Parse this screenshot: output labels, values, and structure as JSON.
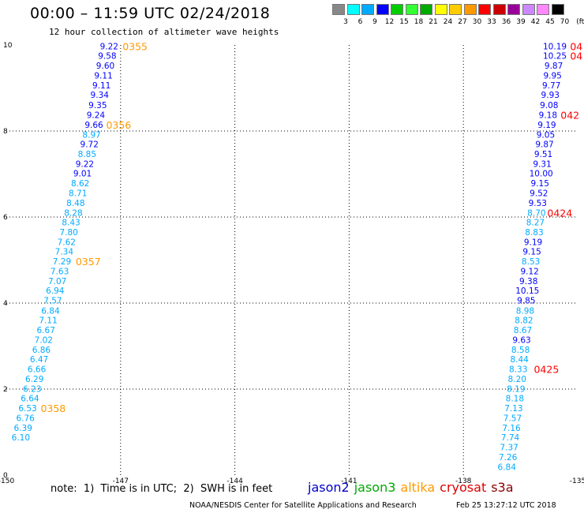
{
  "header": {
    "title": "00:00 – 11:59 UTC 02/24/2018",
    "subtitle": "12 hour collection of altimeter wave heights"
  },
  "colorbar": {
    "colors": [
      "#888888",
      "#00ffff",
      "#00aaff",
      "#0000ff",
      "#00cc00",
      "#33ff33",
      "#00aa00",
      "#ffff00",
      "#ffcc00",
      "#ff9900",
      "#ff0000",
      "#cc0000",
      "#990099",
      "#cc88ff",
      "#ff88ff",
      "#000000"
    ],
    "labels": [
      "3",
      "6",
      "9",
      "12",
      "15",
      "18",
      "21",
      "24",
      "27",
      "30",
      "33",
      "36",
      "39",
      "42",
      "45",
      "70",
      "(ft)"
    ]
  },
  "chart_data": {
    "type": "scatter",
    "title": "12 hour collection of altimeter wave heights",
    "xlim": [
      -150,
      -135
    ],
    "ylim": [
      0,
      10
    ],
    "x_ticks": [
      "-150",
      "-147",
      "-144",
      "-141",
      "-138",
      "-135"
    ],
    "x_tick_values": [
      -150,
      -147,
      -144,
      -141,
      -138,
      -135
    ],
    "y_ticks": [
      "0",
      "2",
      "4",
      "6",
      "8",
      "10"
    ],
    "y_tick_values": [
      0,
      2,
      4,
      6,
      8,
      10
    ],
    "grid": true,
    "colors": {
      "c9": "#00aaff",
      "c12": "#0000ff",
      "time_altika": "#ff9900",
      "time_cryosat": "#ff0000"
    },
    "tracks": [
      {
        "name": "track-west",
        "points": [
          {
            "x": -147.3,
            "y": 9.97,
            "v": "9.22",
            "c": "c12"
          },
          {
            "x": -147.35,
            "y": 9.75,
            "v": "9.58",
            "c": "c12"
          },
          {
            "x": -147.4,
            "y": 9.52,
            "v": "9.60",
            "c": "c12"
          },
          {
            "x": -147.45,
            "y": 9.29,
            "v": "9.11",
            "c": "c12"
          },
          {
            "x": -147.5,
            "y": 9.06,
            "v": "9.11",
            "c": "c12"
          },
          {
            "x": -147.55,
            "y": 8.84,
            "v": "9.34",
            "c": "c12"
          },
          {
            "x": -147.6,
            "y": 8.61,
            "v": "9.35",
            "c": "c12"
          },
          {
            "x": -147.65,
            "y": 8.38,
            "v": "9.24",
            "c": "c12"
          },
          {
            "x": -147.7,
            "y": 8.15,
            "v": "9.66",
            "c": "c12"
          },
          {
            "x": -147.76,
            "y": 7.92,
            "v": "8.97",
            "c": "c9"
          },
          {
            "x": -147.82,
            "y": 7.7,
            "v": "9.72",
            "c": "c12"
          },
          {
            "x": -147.88,
            "y": 7.47,
            "v": "8.85",
            "c": "c9"
          },
          {
            "x": -147.94,
            "y": 7.24,
            "v": "9.22",
            "c": "c12"
          },
          {
            "x": -148.0,
            "y": 7.02,
            "v": "9.01",
            "c": "c12"
          },
          {
            "x": -148.06,
            "y": 6.79,
            "v": "8.62",
            "c": "c9"
          },
          {
            "x": -148.12,
            "y": 6.56,
            "v": "8.71",
            "c": "c9"
          },
          {
            "x": -148.18,
            "y": 6.33,
            "v": "8.48",
            "c": "c9"
          },
          {
            "x": -148.24,
            "y": 6.1,
            "v": "8.28",
            "c": "c9"
          },
          {
            "x": -148.3,
            "y": 5.88,
            "v": "8.43",
            "c": "c9"
          },
          {
            "x": -148.36,
            "y": 5.65,
            "v": "7.80",
            "c": "c9"
          },
          {
            "x": -148.42,
            "y": 5.42,
            "v": "7.62",
            "c": "c9"
          },
          {
            "x": -148.48,
            "y": 5.2,
            "v": "7.34",
            "c": "c9"
          },
          {
            "x": -148.54,
            "y": 4.97,
            "v": "7.29",
            "c": "c9"
          },
          {
            "x": -148.6,
            "y": 4.74,
            "v": "7.63",
            "c": "c9"
          },
          {
            "x": -148.66,
            "y": 4.51,
            "v": "7.07",
            "c": "c9"
          },
          {
            "x": -148.72,
            "y": 4.29,
            "v": "6.94",
            "c": "c9"
          },
          {
            "x": -148.78,
            "y": 4.06,
            "v": "7.57",
            "c": "c9"
          },
          {
            "x": -148.84,
            "y": 3.83,
            "v": "6.84",
            "c": "c9"
          },
          {
            "x": -148.9,
            "y": 3.61,
            "v": "7.11",
            "c": "c9"
          },
          {
            "x": -148.96,
            "y": 3.38,
            "v": "6.67",
            "c": "c9"
          },
          {
            "x": -149.02,
            "y": 3.15,
            "v": "7.02",
            "c": "c9"
          },
          {
            "x": -149.08,
            "y": 2.92,
            "v": "6.86",
            "c": "c9"
          },
          {
            "x": -149.14,
            "y": 2.7,
            "v": "6.47",
            "c": "c9"
          },
          {
            "x": -149.2,
            "y": 2.47,
            "v": "6.66",
            "c": "c9"
          },
          {
            "x": -149.26,
            "y": 2.24,
            "v": "6.29",
            "c": "c9"
          },
          {
            "x": -149.32,
            "y": 2.01,
            "v": "6.23",
            "c": "c9"
          },
          {
            "x": -149.38,
            "y": 1.79,
            "v": "6.64",
            "c": "c9"
          },
          {
            "x": -149.44,
            "y": 1.56,
            "v": "6.53",
            "c": "c9"
          },
          {
            "x": -149.5,
            "y": 1.33,
            "v": "6.76",
            "c": "c9"
          },
          {
            "x": -149.56,
            "y": 1.1,
            "v": "6.39",
            "c": "c9"
          },
          {
            "x": -149.62,
            "y": 0.88,
            "v": "6.10",
            "c": "c9"
          }
        ]
      },
      {
        "name": "track-east",
        "points": [
          {
            "x": -135.6,
            "y": 9.97,
            "v": "10.19",
            "c": "c12"
          },
          {
            "x": -135.6,
            "y": 9.75,
            "v": "10.25",
            "c": "c12"
          },
          {
            "x": -135.63,
            "y": 9.52,
            "v": "9.87",
            "c": "c12"
          },
          {
            "x": -135.66,
            "y": 9.29,
            "v": "9.95",
            "c": "c12"
          },
          {
            "x": -135.69,
            "y": 9.06,
            "v": "9.77",
            "c": "c12"
          },
          {
            "x": -135.72,
            "y": 8.84,
            "v": "9.93",
            "c": "c12"
          },
          {
            "x": -135.75,
            "y": 8.61,
            "v": "9.08",
            "c": "c12"
          },
          {
            "x": -135.78,
            "y": 8.38,
            "v": "9.18",
            "c": "c12"
          },
          {
            "x": -135.81,
            "y": 8.15,
            "v": "9.19",
            "c": "c12"
          },
          {
            "x": -135.84,
            "y": 7.92,
            "v": "9.05",
            "c": "c12"
          },
          {
            "x": -135.87,
            "y": 7.7,
            "v": "9.87",
            "c": "c12"
          },
          {
            "x": -135.9,
            "y": 7.47,
            "v": "9.51",
            "c": "c12"
          },
          {
            "x": -135.93,
            "y": 7.24,
            "v": "9.31",
            "c": "c12"
          },
          {
            "x": -135.96,
            "y": 7.02,
            "v": "10.00",
            "c": "c12"
          },
          {
            "x": -135.99,
            "y": 6.79,
            "v": "9.15",
            "c": "c12"
          },
          {
            "x": -136.02,
            "y": 6.56,
            "v": "9.52",
            "c": "c12"
          },
          {
            "x": -136.05,
            "y": 6.33,
            "v": "9.53",
            "c": "c12"
          },
          {
            "x": -136.08,
            "y": 6.1,
            "v": "8.70",
            "c": "c9"
          },
          {
            "x": -136.11,
            "y": 5.88,
            "v": "8.27",
            "c": "c9"
          },
          {
            "x": -136.14,
            "y": 5.65,
            "v": "8.83",
            "c": "c9"
          },
          {
            "x": -136.17,
            "y": 5.42,
            "v": "9.19",
            "c": "c12"
          },
          {
            "x": -136.2,
            "y": 5.2,
            "v": "9.15",
            "c": "c12"
          },
          {
            "x": -136.23,
            "y": 4.97,
            "v": "8.53",
            "c": "c9"
          },
          {
            "x": -136.26,
            "y": 4.74,
            "v": "9.12",
            "c": "c12"
          },
          {
            "x": -136.29,
            "y": 4.51,
            "v": "9.38",
            "c": "c12"
          },
          {
            "x": -136.32,
            "y": 4.29,
            "v": "10.15",
            "c": "c12"
          },
          {
            "x": -136.35,
            "y": 4.06,
            "v": "9.85",
            "c": "c12"
          },
          {
            "x": -136.38,
            "y": 3.83,
            "v": "8.98",
            "c": "c9"
          },
          {
            "x": -136.41,
            "y": 3.61,
            "v": "8.82",
            "c": "c9"
          },
          {
            "x": -136.44,
            "y": 3.38,
            "v": "8.67",
            "c": "c9"
          },
          {
            "x": -136.47,
            "y": 3.15,
            "v": "9.63",
            "c": "c12"
          },
          {
            "x": -136.5,
            "y": 2.92,
            "v": "8.58",
            "c": "c9"
          },
          {
            "x": -136.53,
            "y": 2.7,
            "v": "8.44",
            "c": "c9"
          },
          {
            "x": -136.56,
            "y": 2.47,
            "v": "8.33",
            "c": "c9"
          },
          {
            "x": -136.59,
            "y": 2.24,
            "v": "8.20",
            "c": "c9"
          },
          {
            "x": -136.62,
            "y": 2.01,
            "v": "8.19",
            "c": "c9"
          },
          {
            "x": -136.65,
            "y": 1.79,
            "v": "8.18",
            "c": "c9"
          },
          {
            "x": -136.68,
            "y": 1.56,
            "v": "7.13",
            "c": "c9"
          },
          {
            "x": -136.71,
            "y": 1.33,
            "v": "7.57",
            "c": "c9"
          },
          {
            "x": -136.74,
            "y": 1.1,
            "v": "7.16",
            "c": "c9"
          },
          {
            "x": -136.77,
            "y": 0.88,
            "v": "7.74",
            "c": "c9"
          },
          {
            "x": -136.8,
            "y": 0.65,
            "v": "7.37",
            "c": "c9"
          },
          {
            "x": -136.83,
            "y": 0.42,
            "v": "7.26",
            "c": "c9"
          },
          {
            "x": -136.86,
            "y": 0.19,
            "v": "6.84",
            "c": "c9"
          }
        ]
      }
    ],
    "time_labels": [
      {
        "x": -146.95,
        "y": 9.97,
        "t": "0355",
        "c": "time_altika"
      },
      {
        "x": -147.38,
        "y": 8.15,
        "t": "0356",
        "c": "time_altika"
      },
      {
        "x": -148.18,
        "y": 4.97,
        "t": "0357",
        "c": "time_altika"
      },
      {
        "x": -149.1,
        "y": 1.56,
        "t": "0358",
        "c": "time_altika"
      },
      {
        "x": -135.2,
        "y": 9.97,
        "t": "04",
        "c": "time_cryosat"
      },
      {
        "x": -135.2,
        "y": 9.75,
        "t": "04",
        "c": "time_cryosat"
      },
      {
        "x": -135.45,
        "y": 8.38,
        "t": "042",
        "c": "time_cryosat"
      },
      {
        "x": -135.8,
        "y": 6.1,
        "t": "0424",
        "c": "time_cryosat"
      },
      {
        "x": -136.15,
        "y": 2.47,
        "t": "0425",
        "c": "time_cryosat"
      }
    ]
  },
  "footer": {
    "note": "note:  1)  Time is in UTC;  2)  SWH is in feet",
    "legend": [
      {
        "name": "jason2",
        "color": "#0000cc"
      },
      {
        "name": "jason3",
        "color": "#00aa00"
      },
      {
        "name": "altika",
        "color": "#ff9900"
      },
      {
        "name": "cryosat",
        "color": "#dd0000"
      },
      {
        "name": "s3a",
        "color": "#880000"
      }
    ],
    "credit": "NOAA/NESDIS Center for Satellite Applications and Research",
    "stamp": "Feb 25 13:27:12 UTC 2018"
  }
}
